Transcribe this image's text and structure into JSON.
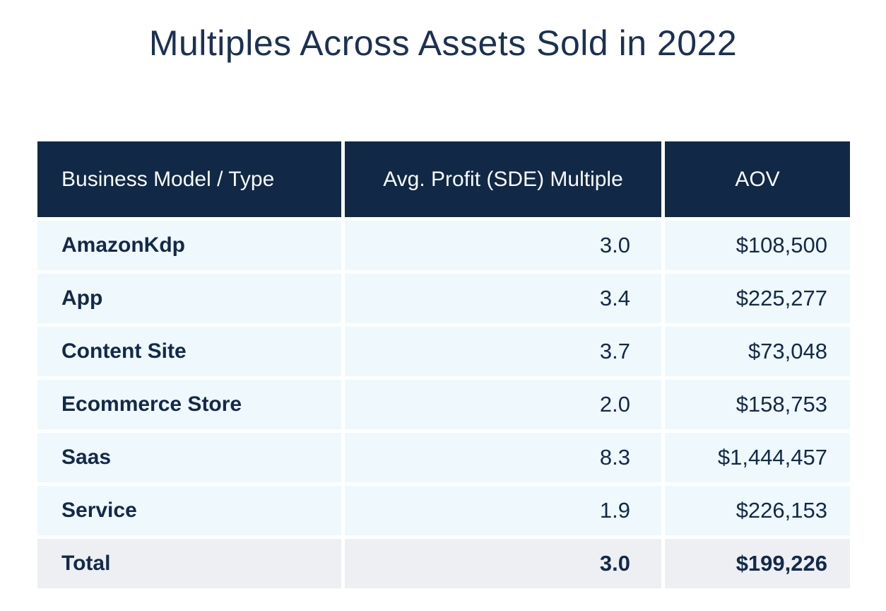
{
  "title": "Multiples Across Assets Sold in 2022",
  "table": {
    "columns": [
      "Business Model / Type",
      "Avg. Profit (SDE) Multiple",
      "AOV"
    ],
    "rows": [
      {
        "label": "AmazonKdp",
        "multiple": "3.0",
        "aov": "$108,500"
      },
      {
        "label": "App",
        "multiple": "3.4",
        "aov": "$225,277"
      },
      {
        "label": "Content Site",
        "multiple": "3.7",
        "aov": "$73,048"
      },
      {
        "label": "Ecommerce Store",
        "multiple": "2.0",
        "aov": "$158,753"
      },
      {
        "label": "Saas",
        "multiple": "8.3",
        "aov": "$1,444,457"
      },
      {
        "label": "Service",
        "multiple": "1.9",
        "aov": "$226,153"
      },
      {
        "label": "Total",
        "multiple": "3.0",
        "aov": "$199,226"
      }
    ]
  },
  "chart_data": {
    "type": "table",
    "title": "Multiples Across Assets Sold in 2022",
    "columns": [
      "Business Model / Type",
      "Avg. Profit (SDE) Multiple",
      "AOV"
    ],
    "rows": [
      [
        "AmazonKdp",
        3.0,
        108500
      ],
      [
        "App",
        3.4,
        225277
      ],
      [
        "Content Site",
        3.7,
        73048
      ],
      [
        "Ecommerce Store",
        2.0,
        158753
      ],
      [
        "Saas",
        8.3,
        1444457
      ],
      [
        "Service",
        1.9,
        226153
      ],
      [
        "Total",
        3.0,
        199226
      ]
    ]
  },
  "colors": {
    "header_bg": "#112846",
    "header_text": "#f7fafc",
    "row_bg": "#eef8fd",
    "total_row_bg": "#edeff3",
    "text_navy": "#13294b",
    "title_navy": "#1b3153",
    "page_bg": "#ffffff"
  }
}
